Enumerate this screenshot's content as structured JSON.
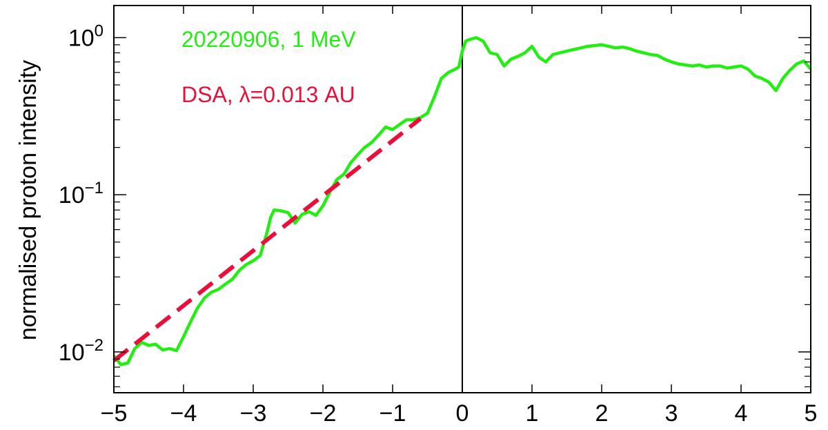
{
  "colors": {
    "data": "#22ee11",
    "fit": "#e8103a",
    "axis": "#000000"
  },
  "chart_data": {
    "type": "line",
    "title": "",
    "xlabel": "",
    "ylabel": "normalised proton intensity",
    "xlim": [
      -5,
      5
    ],
    "ylim": [
      0.0055,
      1.6
    ],
    "yscale": "log",
    "grid": false,
    "xticks": [
      -5,
      -4,
      -3,
      -2,
      -1,
      0,
      1,
      2,
      3,
      4,
      5
    ],
    "xtick_labels": [
      "−5",
      "−4",
      "−3",
      "−2",
      "−1",
      "0",
      "1",
      "2",
      "3",
      "4",
      "5"
    ],
    "yticks": [
      {
        "value": 0.01,
        "base": "10",
        "exp": "−2"
      },
      {
        "value": 0.1,
        "base": "10",
        "exp": "−1"
      },
      {
        "value": 1,
        "base": "10",
        "exp": "0"
      }
    ],
    "vline_x": 0,
    "legend_position": "top-left",
    "series": [
      {
        "name": "20220906, 1 MeV",
        "style": "solid",
        "x": [
          -5.0,
          -4.9,
          -4.8,
          -4.7,
          -4.6,
          -4.5,
          -4.4,
          -4.3,
          -4.2,
          -4.1,
          -4.0,
          -3.9,
          -3.8,
          -3.7,
          -3.6,
          -3.5,
          -3.4,
          -3.3,
          -3.2,
          -3.1,
          -3.0,
          -2.9,
          -2.8,
          -2.75,
          -2.7,
          -2.6,
          -2.5,
          -2.4,
          -2.3,
          -2.2,
          -2.1,
          -2.0,
          -1.9,
          -1.8,
          -1.7,
          -1.6,
          -1.5,
          -1.4,
          -1.3,
          -1.2,
          -1.1,
          -1.0,
          -0.9,
          -0.8,
          -0.7,
          -0.6,
          -0.5,
          -0.4,
          -0.3,
          -0.2,
          -0.1,
          -0.05,
          0.0,
          0.05,
          0.1,
          0.2,
          0.3,
          0.4,
          0.5,
          0.6,
          0.7,
          0.8,
          0.9,
          1.0,
          1.1,
          1.2,
          1.3,
          1.4,
          1.5,
          1.6,
          1.7,
          1.8,
          1.9,
          2.0,
          2.1,
          2.2,
          2.3,
          2.4,
          2.5,
          2.6,
          2.7,
          2.8,
          2.9,
          3.0,
          3.1,
          3.2,
          3.3,
          3.4,
          3.5,
          3.6,
          3.7,
          3.8,
          3.9,
          4.0,
          4.1,
          4.2,
          4.3,
          4.4,
          4.5,
          4.6,
          4.7,
          4.8,
          4.9,
          5.0
        ],
        "y": [
          0.0095,
          0.0083,
          0.0085,
          0.0105,
          0.0115,
          0.011,
          0.0112,
          0.0103,
          0.0105,
          0.0102,
          0.0125,
          0.0155,
          0.019,
          0.022,
          0.024,
          0.025,
          0.027,
          0.029,
          0.033,
          0.036,
          0.038,
          0.041,
          0.058,
          0.072,
          0.08,
          0.079,
          0.077,
          0.066,
          0.075,
          0.078,
          0.074,
          0.085,
          0.104,
          0.125,
          0.135,
          0.16,
          0.18,
          0.2,
          0.215,
          0.24,
          0.27,
          0.26,
          0.28,
          0.3,
          0.3,
          0.31,
          0.33,
          0.42,
          0.55,
          0.6,
          0.63,
          0.65,
          0.82,
          0.95,
          0.97,
          1.0,
          0.95,
          0.8,
          0.78,
          0.66,
          0.73,
          0.76,
          0.8,
          0.88,
          0.75,
          0.7,
          0.78,
          0.8,
          0.82,
          0.84,
          0.86,
          0.88,
          0.89,
          0.9,
          0.88,
          0.86,
          0.87,
          0.85,
          0.82,
          0.8,
          0.78,
          0.77,
          0.73,
          0.7,
          0.68,
          0.67,
          0.66,
          0.67,
          0.65,
          0.66,
          0.66,
          0.64,
          0.65,
          0.66,
          0.63,
          0.57,
          0.55,
          0.52,
          0.46,
          0.55,
          0.62,
          0.68,
          0.71,
          0.63
        ]
      },
      {
        "name": "DSA, λ=0.013 AU",
        "style": "dashed",
        "x": [
          -5.0,
          -0.6
        ],
        "y": [
          0.0088,
          0.305
        ]
      }
    ]
  }
}
